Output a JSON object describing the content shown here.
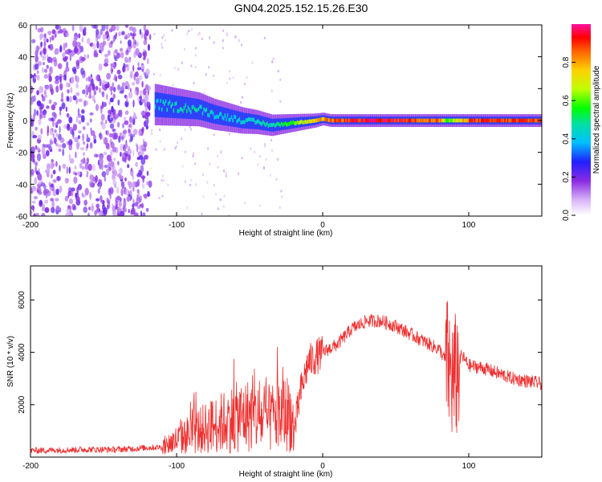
{
  "title": "GN04.2025.152.15.26.E30",
  "colors": {
    "snr_line": "#ee3030",
    "scatter": "#6a20e0",
    "track_core": "#ff3020",
    "track_outer": "#0030ff"
  },
  "chart_data": [
    {
      "type": "heatmap",
      "xlabel": "Height of straight line (km)",
      "ylabel": "Frequency (Hz)",
      "xlim": [
        -200,
        150
      ],
      "ylim": [
        -60,
        60
      ],
      "xticks": [
        -200,
        -100,
        0,
        100
      ],
      "yticks": [
        60,
        40,
        20,
        0,
        -20,
        -40,
        -60
      ],
      "colorbar": {
        "label": "Normalized spectral amplitude",
        "range": [
          0,
          1
        ],
        "ticks": [
          0.0,
          0.2,
          0.4,
          0.6,
          0.8
        ]
      },
      "noise_region": {
        "x": [
          -200,
          -118
        ],
        "level": 0.3
      },
      "track": [
        {
          "x": -115,
          "y": 10,
          "a": 0.45
        },
        {
          "x": -105,
          "y": 9,
          "a": 0.5
        },
        {
          "x": -95,
          "y": 8,
          "a": 0.5
        },
        {
          "x": -85,
          "y": 7,
          "a": 0.5
        },
        {
          "x": -75,
          "y": 4,
          "a": 0.45
        },
        {
          "x": -65,
          "y": 2,
          "a": 0.45
        },
        {
          "x": -55,
          "y": 0,
          "a": 0.45
        },
        {
          "x": -45,
          "y": -1,
          "a": 0.5
        },
        {
          "x": -35,
          "y": -3,
          "a": 0.5
        },
        {
          "x": -25,
          "y": -2,
          "a": 0.6
        },
        {
          "x": -15,
          "y": -1,
          "a": 0.7
        },
        {
          "x": -5,
          "y": 0,
          "a": 0.8
        },
        {
          "x": 0,
          "y": 1,
          "a": 0.85
        },
        {
          "x": 5,
          "y": 0,
          "a": 0.9
        },
        {
          "x": 20,
          "y": 0,
          "a": 1.0
        },
        {
          "x": 50,
          "y": 0,
          "a": 1.0
        },
        {
          "x": 80,
          "y": 0,
          "a": 0.9
        },
        {
          "x": 85,
          "y": 0,
          "a": 0.6
        },
        {
          "x": 100,
          "y": 0,
          "a": 0.95
        },
        {
          "x": 150,
          "y": 0,
          "a": 0.95
        }
      ]
    },
    {
      "type": "line",
      "xlabel": "Height of straight line (km)",
      "ylabel": "SNR (10 * v/v)",
      "xlim": [
        -200,
        150
      ],
      "ylim": [
        0,
        7300
      ],
      "xticks": [
        -200,
        -100,
        0,
        100
      ],
      "yticks": [
        2000,
        4000,
        6000
      ],
      "series": [
        {
          "x": [
            -200,
            -180,
            -160,
            -140,
            -130,
            -120,
            -110,
            -100,
            -90,
            -80,
            -70,
            -60,
            -50,
            -40,
            -30,
            -22,
            -20,
            -15,
            -10,
            0,
            10,
            20,
            30,
            40,
            50,
            60,
            70,
            80,
            85,
            90,
            95,
            100,
            110,
            120,
            130,
            140,
            150
          ],
          "y": [
            250,
            270,
            290,
            290,
            320,
            360,
            380,
            650,
            900,
            1100,
            1300,
            1500,
            1600,
            1400,
            1600,
            1700,
            800,
            2500,
            3600,
            4000,
            4300,
            4900,
            5200,
            5200,
            5000,
            4700,
            4400,
            4100,
            3600,
            2800,
            3900,
            3500,
            3400,
            3200,
            3000,
            2900,
            2800
          ]
        }
      ]
    }
  ]
}
